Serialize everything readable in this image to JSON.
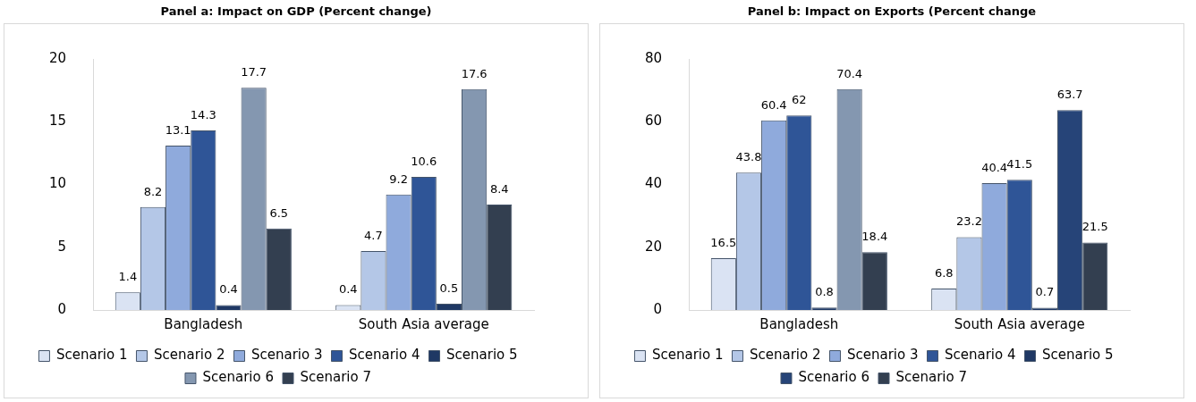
{
  "chart_data": [
    {
      "type": "bar",
      "title": "Panel a: Impact on GDP (Percent change)",
      "categories": [
        "Bangladesh",
        "South Asia average"
      ],
      "ylim": [
        0,
        20
      ],
      "yticks": [
        0,
        5,
        10,
        15,
        20
      ],
      "grid": false,
      "legend": "bottom",
      "data_labels": true,
      "series": [
        {
          "name": "Scenario 1",
          "color": "#dae3f3",
          "values": [
            1.4,
            0.4
          ]
        },
        {
          "name": "Scenario 2",
          "color": "#b4c7e7",
          "values": [
            8.2,
            4.7
          ]
        },
        {
          "name": "Scenario 3",
          "color": "#8faadc",
          "values": [
            13.1,
            9.2
          ]
        },
        {
          "name": "Scenario 4",
          "color": "#2f5597",
          "values": [
            14.3,
            10.6
          ]
        },
        {
          "name": "Scenario 5",
          "color": "#1f3864",
          "values": [
            0.4,
            0.5
          ]
        },
        {
          "name": "Scenario 6",
          "color": "#8497b0",
          "values": [
            17.7,
            17.6
          ]
        },
        {
          "name": "Scenario 7",
          "color": "#333f50",
          "values": [
            6.5,
            8.4
          ]
        }
      ]
    },
    {
      "type": "bar",
      "title": "Panel b: Impact on Exports (Percent change",
      "categories": [
        "Bangladesh",
        "South Asia average"
      ],
      "ylim": [
        0,
        80
      ],
      "yticks": [
        0,
        20,
        40,
        60,
        80
      ],
      "grid": false,
      "legend": "bottom",
      "data_labels": true,
      "series": [
        {
          "name": "Scenario 1",
          "color": "#dae3f3",
          "values": [
            16.5,
            6.8
          ]
        },
        {
          "name": "Scenario 2",
          "color": "#b4c7e7",
          "values": [
            43.8,
            23.2
          ]
        },
        {
          "name": "Scenario 3",
          "color": "#8faadc",
          "values": [
            60.4,
            40.4
          ]
        },
        {
          "name": "Scenario 4",
          "color": "#2f5597",
          "values": [
            62,
            41.5
          ]
        },
        {
          "name": "Scenario 5",
          "color": "#1f3864",
          "values": [
            0.8,
            0.7
          ]
        },
        {
          "name": "Scenario 6",
          "color": "#264478",
          "colors": [
            "#8497b0",
            "#264478"
          ],
          "values": [
            70.4,
            63.7
          ]
        },
        {
          "name": "Scenario 7",
          "color": "#333f50",
          "values": [
            18.4,
            21.5
          ]
        }
      ]
    }
  ]
}
